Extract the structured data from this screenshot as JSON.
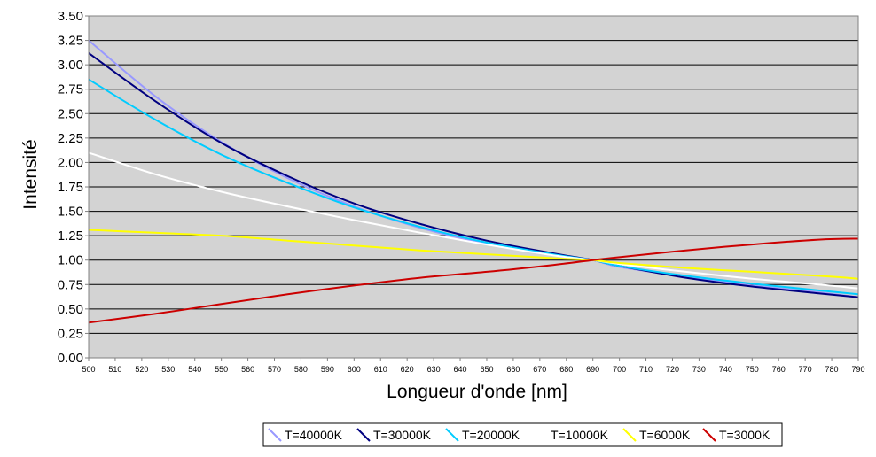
{
  "chart_data": {
    "type": "line",
    "title": "",
    "xlabel": "Longueur d'onde [nm]",
    "ylabel": "Intensité",
    "xlim": [
      500,
      790
    ],
    "ylim": [
      0,
      3.5
    ],
    "x_ticks": [
      "500",
      "510",
      "520",
      "530",
      "540",
      "550",
      "560",
      "570",
      "580",
      "590",
      "600",
      "610",
      "620",
      "630",
      "640",
      "650",
      "660",
      "670",
      "680",
      "690",
      "700",
      "710",
      "720",
      "730",
      "740",
      "750",
      "760",
      "770",
      "780",
      "790"
    ],
    "y_ticks": [
      "0.00",
      "0.25",
      "0.50",
      "0.75",
      "1.00",
      "1.25",
      "1.50",
      "1.75",
      "2.00",
      "2.25",
      "2.50",
      "2.75",
      "3.00",
      "3.25",
      "3.50"
    ],
    "grid": "horizontal",
    "legend_position": "bottom",
    "x": [
      500,
      525,
      550,
      575,
      600,
      625,
      650,
      675,
      690,
      700,
      725,
      750,
      775,
      790
    ],
    "series": [
      {
        "name": "T=40000K",
        "color": "#9999ff",
        "values": [
          3.25,
          2.68,
          2.21,
          1.84,
          1.55,
          1.33,
          1.17,
          1.06,
          1.0,
          0.93,
          0.83,
          0.74,
          0.67,
          0.62
        ]
      },
      {
        "name": "T=30000K",
        "color": "#000080",
        "values": [
          3.12,
          2.63,
          2.2,
          1.86,
          1.58,
          1.37,
          1.2,
          1.07,
          1.0,
          0.94,
          0.82,
          0.73,
          0.66,
          0.62
        ]
      },
      {
        "name": "T=20000K",
        "color": "#00ccff",
        "values": [
          2.85,
          2.44,
          2.08,
          1.79,
          1.54,
          1.34,
          1.18,
          1.06,
          1.0,
          0.94,
          0.84,
          0.76,
          0.69,
          0.65
        ]
      },
      {
        "name": "T=10000K",
        "color": "#ffffff",
        "values": [
          2.1,
          1.88,
          1.7,
          1.55,
          1.41,
          1.28,
          1.16,
          1.05,
          1.0,
          0.96,
          0.88,
          0.81,
          0.75,
          0.71
        ]
      },
      {
        "name": "T=6000K",
        "color": "#ffff00",
        "values": [
          1.31,
          1.28,
          1.25,
          1.2,
          1.15,
          1.1,
          1.06,
          1.02,
          1.0,
          0.97,
          0.92,
          0.88,
          0.84,
          0.81
        ]
      },
      {
        "name": "T=3000K",
        "color": "#cc0000",
        "values": [
          0.36,
          0.45,
          0.55,
          0.65,
          0.74,
          0.82,
          0.88,
          0.95,
          1.0,
          1.03,
          1.1,
          1.16,
          1.21,
          1.22
        ]
      }
    ]
  }
}
